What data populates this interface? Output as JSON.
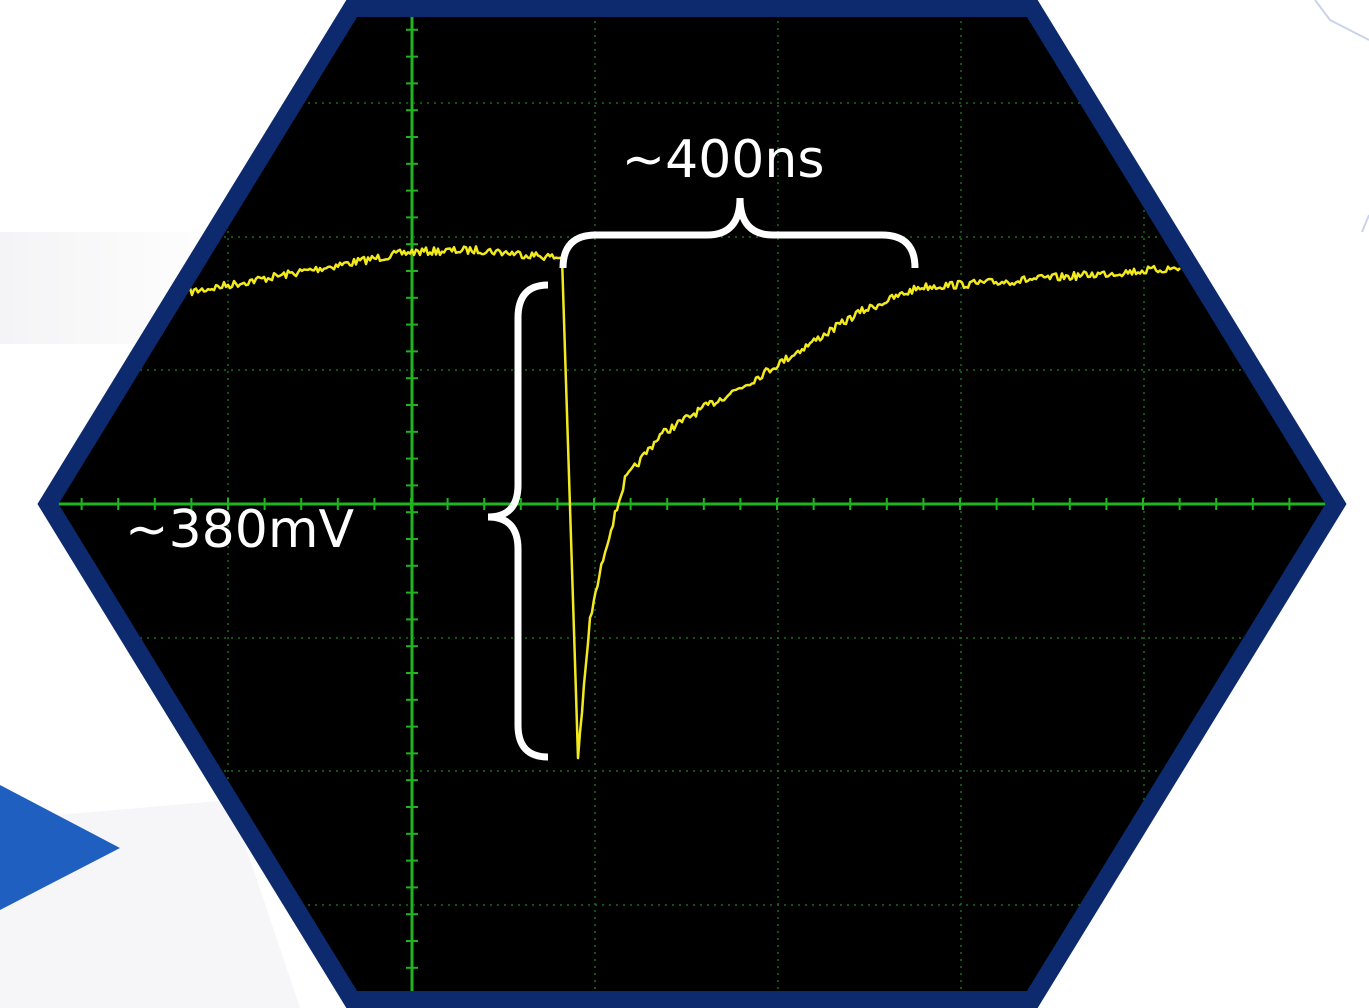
{
  "annotations": {
    "time": "~400ns",
    "amplitude": "~380mV"
  }
}
